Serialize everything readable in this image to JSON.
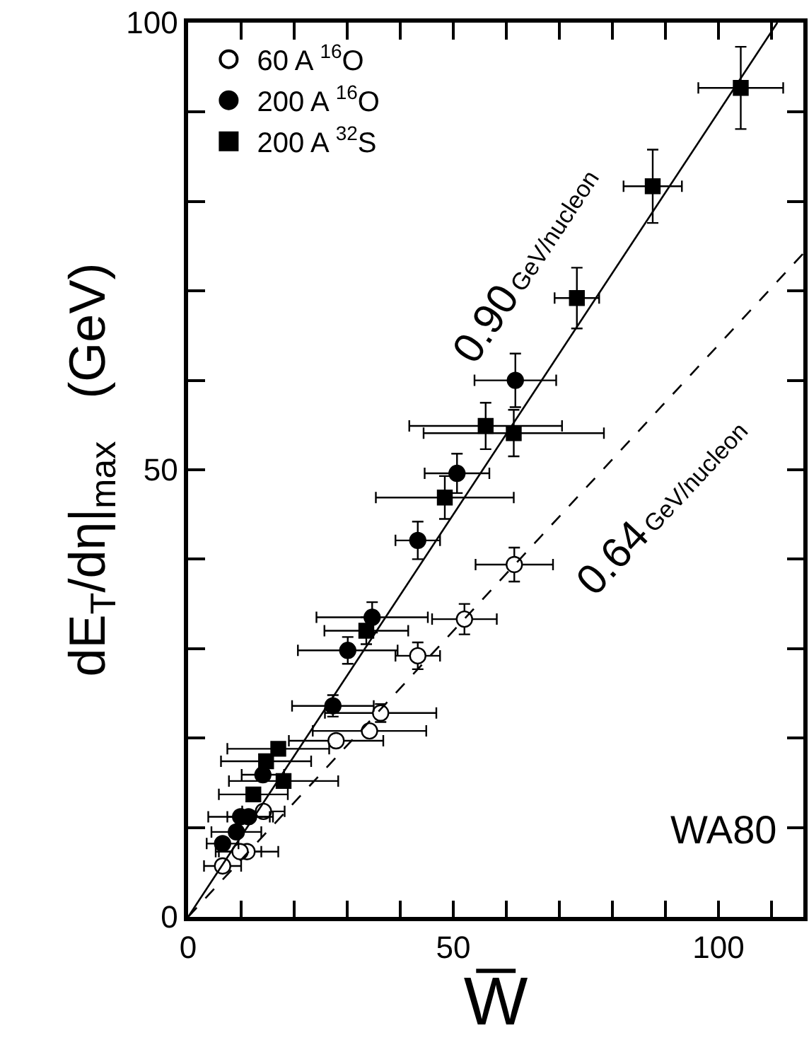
{
  "chart_data": {
    "type": "scatter",
    "xlabel": "W̅",
    "ylabel": "dE$_{T}$/dη|$_{max}$   (GeV)",
    "xlim": [
      0,
      116
    ],
    "ylim": [
      0,
      100
    ],
    "xticks": [
      0,
      {
        "value": 10,
        "label": null
      },
      {
        "value": 20,
        "label": null
      },
      {
        "value": 30,
        "label": null
      },
      {
        "value": 40,
        "label": null
      },
      50,
      {
        "value": 60,
        "label": null
      },
      {
        "value": 70,
        "label": null
      },
      {
        "value": 80,
        "label": null
      },
      {
        "value": 90,
        "label": null
      },
      100,
      {
        "value": 110,
        "label": null
      }
    ],
    "yticks": [
      0,
      {
        "value": 10,
        "label": null
      },
      {
        "value": 20,
        "label": null
      },
      {
        "value": 30,
        "label": null
      },
      {
        "value": 40,
        "label": null
      },
      50,
      {
        "value": 60,
        "label": null
      },
      {
        "value": 70,
        "label": null
      },
      {
        "value": 80,
        "label": null
      },
      {
        "value": 90,
        "label": null
      },
      100
    ],
    "legend": "top left",
    "series": [
      {
        "name": "60 A $^{16}$O",
        "color": "#ffffff",
        "marker": "circle",
        "x": [
          61.5,
          52.1,
          43.3,
          36.3,
          34.2,
          27.9,
          14.2,
          11.1,
          9.8,
          6.5
        ],
        "values": [
          39.4,
          33.3,
          29.2,
          22.8,
          20.8,
          19.7,
          11.8,
          7.3,
          7.3,
          5.7
        ],
        "xerrors": [
          7.3,
          6.1,
          4.2,
          10.5,
          10.7,
          8.9,
          4,
          5.9,
          4,
          3.5
        ],
        "errors": [
          1.9,
          1.7,
          1.5,
          1,
          null,
          null,
          null,
          null,
          null,
          null
        ]
      },
      {
        "name": "200 A $^{16}$O",
        "color": "#000000",
        "marker": "circle",
        "x": [
          61.7,
          50.7,
          43.3,
          34.7,
          30.1,
          27.3,
          14.1,
          9.9,
          11.4,
          9.1,
          6.5
        ],
        "values": [
          60.0,
          49.6,
          42.1,
          33.5,
          29.8,
          23.6,
          15.9,
          11.2,
          11.2,
          9.5,
          8.2
        ],
        "xerrors": [
          7.7,
          6.1,
          4.2,
          10.5,
          9.4,
          7.7,
          4,
          6.1,
          4,
          4.7,
          3
        ],
        "errors": [
          3.0,
          2.2,
          2.1,
          1.7,
          1.5,
          1.2,
          null,
          null,
          null,
          null,
          null
        ]
      },
      {
        "name": "200 A $^{32}$S",
        "color": "#000000",
        "marker": "square",
        "x": [
          104.2,
          87.6,
          73.3,
          56.1,
          61.4,
          48.4,
          33.6,
          17.0,
          14.7,
          18.0,
          12.3
        ],
        "values": [
          92.7,
          81.7,
          69.2,
          54.9,
          54.1,
          46.9,
          32.0,
          18.8,
          17.4,
          15.2,
          13.7
        ],
        "xerrors": [
          8.0,
          5.5,
          4.2,
          14.4,
          17,
          13.0,
          7.9,
          9.6,
          8.5,
          10.3,
          6.5
        ],
        "errors": [
          4.6,
          4.1,
          3.4,
          2.6,
          2.6,
          2.4,
          1.5,
          null,
          null,
          null,
          null
        ]
      },
      {
        "type": "line",
        "color": "#000000",
        "line_style": "solid",
        "x": [
          0,
          111.1
        ],
        "values": [
          0,
          100
        ]
      },
      {
        "type": "line",
        "color": "#000000",
        "line_style": "dashed",
        "x": [
          0,
          116
        ],
        "values": [
          0,
          74.2
        ]
      }
    ],
    "annotations": [
      "0.90 GeV/nucleon",
      "0.64 GeV/nucleon",
      "WA80"
    ]
  }
}
